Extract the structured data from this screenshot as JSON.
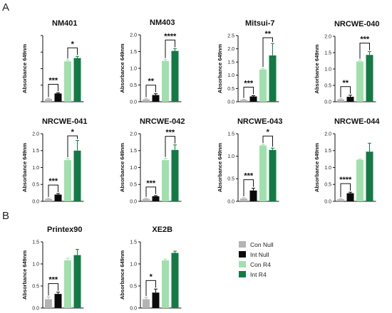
{
  "panel_labels": [
    "A",
    "B"
  ],
  "colors": {
    "Con Null": "#b4b4b4",
    "Int Null": "#0b0b0b",
    "Con R4": "#9fe0ad",
    "Int R4": "#137a45"
  },
  "legend": [
    "Con Null",
    "Int Null",
    "Con R4",
    "Int R4"
  ],
  "chart_data": [
    {
      "panel": "A",
      "type": "bar",
      "title": "NM401",
      "ylabel": "Absorbance 649nm",
      "ylim": [
        0,
        2.0
      ],
      "yticks": [
        "0.0",
        "0.5",
        "1.0",
        "1.5",
        "2.0"
      ],
      "show_tick_labels": false,
      "categories": [
        "Con Null",
        "Int Null",
        "Con R4",
        "Int R4"
      ],
      "values": [
        0.08,
        0.25,
        1.22,
        1.32
      ],
      "errors": [
        0.02,
        0.02,
        0.04,
        0.05
      ],
      "sig": [
        {
          "pair": [
            0,
            1
          ],
          "label": "***"
        },
        {
          "pair": [
            2,
            3
          ],
          "label": "*"
        }
      ]
    },
    {
      "panel": "A",
      "type": "bar",
      "title": "NM403",
      "ylabel": "Absorbance 649nm",
      "ylim": [
        0,
        2.0
      ],
      "yticks": [
        "0.0",
        "0.5",
        "1.0",
        "1.5",
        "2.0"
      ],
      "show_tick_labels": true,
      "categories": [
        "Con Null",
        "Int Null",
        "Con R4",
        "Int R4"
      ],
      "values": [
        0.07,
        0.2,
        1.22,
        1.52
      ],
      "errors": [
        0.02,
        0.04,
        0.04,
        0.07
      ],
      "sig": [
        {
          "pair": [
            0,
            1
          ],
          "label": "**"
        },
        {
          "pair": [
            2,
            3
          ],
          "label": "****"
        }
      ]
    },
    {
      "panel": "A",
      "type": "bar",
      "title": "Mitsui-7",
      "ylabel": "Absorbance 649nm",
      "ylim": [
        0,
        2.5
      ],
      "yticks": [
        "0.0",
        "0.5",
        "1.0",
        "1.5",
        "2.0",
        "2.5"
      ],
      "show_tick_labels": true,
      "categories": [
        "Con Null",
        "Int Null",
        "Con R4",
        "Int R4"
      ],
      "values": [
        0.07,
        0.2,
        1.22,
        1.75
      ],
      "errors": [
        0.02,
        0.03,
        0.04,
        0.45
      ],
      "sig": [
        {
          "pair": [
            0,
            1
          ],
          "label": "***"
        },
        {
          "pair": [
            2,
            3
          ],
          "label": "**"
        }
      ]
    },
    {
      "panel": "A",
      "type": "bar",
      "title": "NRCWE-040",
      "ylabel": "Absorbance 649nm",
      "ylim": [
        0,
        2.0
      ],
      "yticks": [
        "0.0",
        "0.5",
        "1.0",
        "1.5",
        "2.0"
      ],
      "show_tick_labels": true,
      "categories": [
        "Con Null",
        "Int Null",
        "Con R4",
        "Int R4"
      ],
      "values": [
        0.07,
        0.15,
        1.23,
        1.43
      ],
      "errors": [
        0.02,
        0.05,
        0.04,
        0.1
      ],
      "sig": [
        {
          "pair": [
            0,
            1
          ],
          "label": "**"
        },
        {
          "pair": [
            2,
            3
          ],
          "label": "***"
        }
      ]
    },
    {
      "panel": "A",
      "type": "bar",
      "title": "NRCWE-041",
      "ylabel": "Absorbance 649nm",
      "ylim": [
        0,
        2.0
      ],
      "yticks": [
        "0.0",
        "0.5",
        "1.0",
        "1.5",
        "2.0"
      ],
      "show_tick_labels": true,
      "categories": [
        "Con Null",
        "Int Null",
        "Con R4",
        "Int R4"
      ],
      "values": [
        0.07,
        0.2,
        1.22,
        1.5
      ],
      "errors": [
        0.02,
        0.03,
        0.04,
        0.3
      ],
      "sig": [
        {
          "pair": [
            0,
            1
          ],
          "label": "***"
        },
        {
          "pair": [
            2,
            3
          ],
          "label": "*"
        }
      ]
    },
    {
      "panel": "A",
      "type": "bar",
      "title": "NRCWE-042",
      "ylabel": "Absorbance 649nm",
      "ylim": [
        0,
        2.0
      ],
      "yticks": [
        "0.0",
        "0.5",
        "1.0",
        "1.5",
        "2.0"
      ],
      "show_tick_labels": true,
      "categories": [
        "Con Null",
        "Int Null",
        "Con R4",
        "Int R4"
      ],
      "values": [
        0.07,
        0.15,
        1.22,
        1.52
      ],
      "errors": [
        0.02,
        0.02,
        0.05,
        0.15
      ],
      "sig": [
        {
          "pair": [
            0,
            1
          ],
          "label": "***"
        },
        {
          "pair": [
            2,
            3
          ],
          "label": "***"
        }
      ]
    },
    {
      "panel": "A",
      "type": "bar",
      "title": "NRCWE-043",
      "ylabel": "Absorbance 649nm",
      "ylim": [
        0,
        1.5
      ],
      "yticks": [
        "0.0",
        "0.5",
        "1.0",
        "1.5"
      ],
      "show_tick_labels": true,
      "categories": [
        "Con Null",
        "Int Null",
        "Con R4",
        "Int R4"
      ],
      "values": [
        0.06,
        0.24,
        1.24,
        1.14
      ],
      "errors": [
        0.02,
        0.05,
        0.02,
        0.04
      ],
      "sig": [
        {
          "pair": [
            0,
            1
          ],
          "label": "***"
        },
        {
          "pair": [
            2,
            3
          ],
          "label": "*"
        }
      ]
    },
    {
      "panel": "A",
      "type": "bar",
      "title": "NRCWE-044",
      "ylabel": "Absorbance 649nm",
      "ylim": [
        0,
        2.0
      ],
      "yticks": [
        "0.0",
        "0.5",
        "1.0",
        "1.5",
        "2.0"
      ],
      "show_tick_labels": true,
      "categories": [
        "Con Null",
        "Int Null",
        "Con R4",
        "Int R4"
      ],
      "values": [
        0.06,
        0.24,
        1.23,
        1.47
      ],
      "errors": [
        0.02,
        0.03,
        0.02,
        0.25
      ],
      "sig": [
        {
          "pair": [
            0,
            1
          ],
          "label": "****"
        }
      ]
    },
    {
      "panel": "B",
      "type": "bar",
      "title": "Printex90",
      "ylabel": "Absorbance 649nm",
      "ylim": [
        0,
        1.5
      ],
      "yticks": [
        "0.0",
        "0.5",
        "1.0",
        "1.5"
      ],
      "show_tick_labels": true,
      "categories": [
        "Con Null",
        "Int Null",
        "Con R4",
        "Int R4"
      ],
      "values": [
        0.2,
        0.32,
        1.08,
        1.2
      ],
      "errors": [
        0.05,
        0.04,
        0.05,
        0.13
      ],
      "sig": [
        {
          "pair": [
            0,
            1
          ],
          "label": "***"
        }
      ]
    },
    {
      "panel": "B",
      "type": "bar",
      "title": "XE2B",
      "ylabel": "Absorbance 649nm",
      "ylim": [
        0,
        1.5
      ],
      "yticks": [
        "0.0",
        "0.5",
        "1.0",
        "1.5"
      ],
      "show_tick_labels": true,
      "categories": [
        "Con Null",
        "Int Null",
        "Con R4",
        "Int R4"
      ],
      "values": [
        0.2,
        0.35,
        1.08,
        1.25
      ],
      "errors": [
        0.04,
        0.08,
        0.03,
        0.04
      ],
      "sig": [
        {
          "pair": [
            0,
            1
          ],
          "label": "*"
        }
      ]
    }
  ]
}
